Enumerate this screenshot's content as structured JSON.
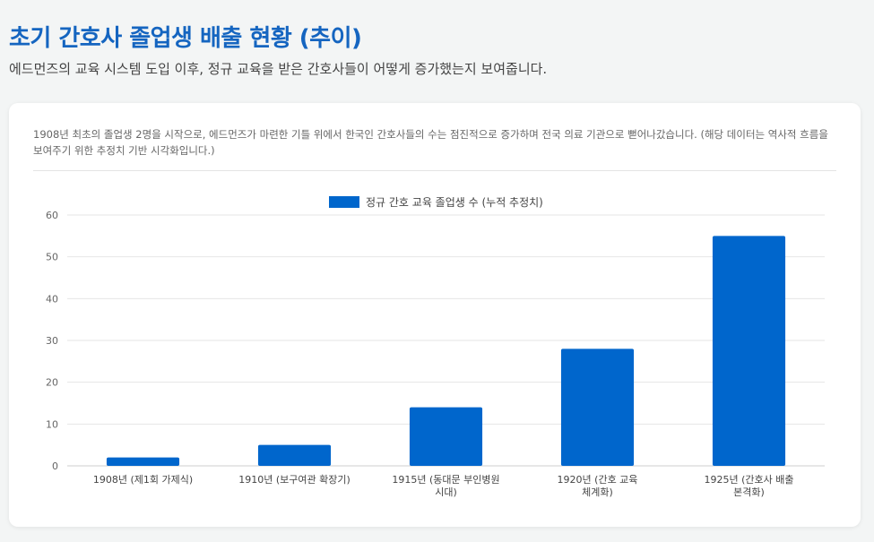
{
  "header": {
    "title": "초기 간호사 졸업생 배출 현황 (추이)",
    "subtitle": "에드먼즈의 교육 시스템 도입 이후, 정규 교육을 받은 간호사들이 어떻게 증가했는지 보여줍니다."
  },
  "card": {
    "description": "1908년 최초의 졸업생 2명을 시작으로, 에드먼즈가 마련한 기틀 위에서 한국인 간호사들의 수는 점진적으로 증가하며 전국 의료 기관으로 뻗어나갔습니다. (해당 데이터는 역사적 흐름을 보여주기 위한 추정치 기반 시각화입니다.)"
  },
  "colors": {
    "accent": "#1565c0",
    "bar": "#0066cc",
    "grid": "#e6e6e6",
    "axis_text": "#666666"
  },
  "chart_data": {
    "type": "bar",
    "categories": [
      [
        "1908년 (제1회 가제식)"
      ],
      [
        "1910년 (보구여관 확장기)"
      ],
      [
        "1915년 (동대문 부인병원",
        "시대)"
      ],
      [
        "1920년 (간호 교육",
        "체계화)"
      ],
      [
        "1925년 (간호사 배출",
        "본격화)"
      ]
    ],
    "series": [
      {
        "name": "정규 간호 교육 졸업생 수 (누적 추정치)",
        "values": [
          2,
          5,
          14,
          28,
          55
        ]
      }
    ],
    "ylim": [
      0,
      60
    ],
    "yticks": [
      0,
      10,
      20,
      30,
      40,
      50,
      60
    ],
    "grid": true,
    "legend": "top-center",
    "xlabel": "",
    "ylabel": ""
  }
}
